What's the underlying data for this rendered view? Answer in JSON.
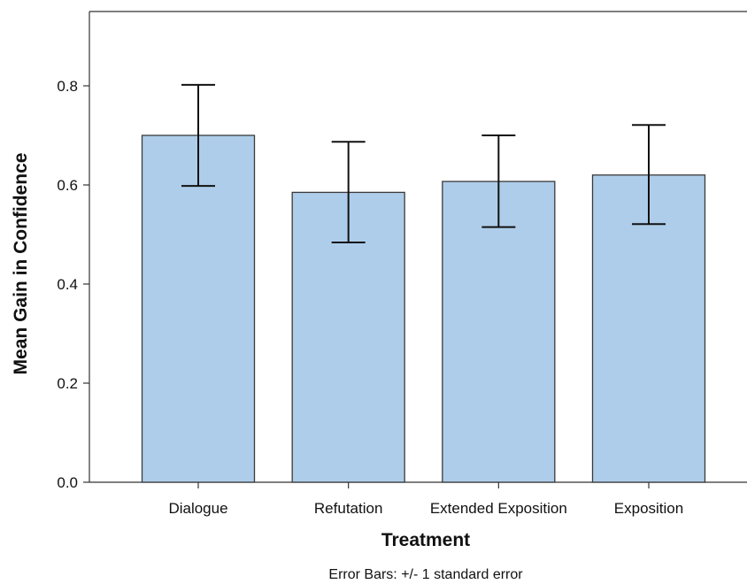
{
  "chart_data": {
    "type": "bar",
    "categories": [
      "Dialogue",
      "Refutation",
      "Extended Exposition",
      "Exposition"
    ],
    "values": [
      0.7,
      0.585,
      0.607,
      0.62
    ],
    "error_bars": [
      {
        "low": 0.598,
        "high": 0.802
      },
      {
        "low": 0.484,
        "high": 0.687
      },
      {
        "low": 0.515,
        "high": 0.7
      },
      {
        "low": 0.521,
        "high": 0.721
      }
    ],
    "ylim": [
      0,
      0.95
    ],
    "yticks": [
      0.0,
      0.2,
      0.4,
      0.6,
      0.8
    ],
    "ytick_labels": [
      "0.0",
      "0.2",
      "0.4",
      "0.6",
      "0.8"
    ],
    "xlabel": "Treatment",
    "ylabel": "Mean Gain in Confidence",
    "note": "Error Bars: +/- 1 standard error",
    "grid": false,
    "colors": {
      "bar_fill": "#aecdea",
      "bar_stroke": "#3a3a3a",
      "axis": "#333333",
      "error_bar": "#111111"
    }
  }
}
